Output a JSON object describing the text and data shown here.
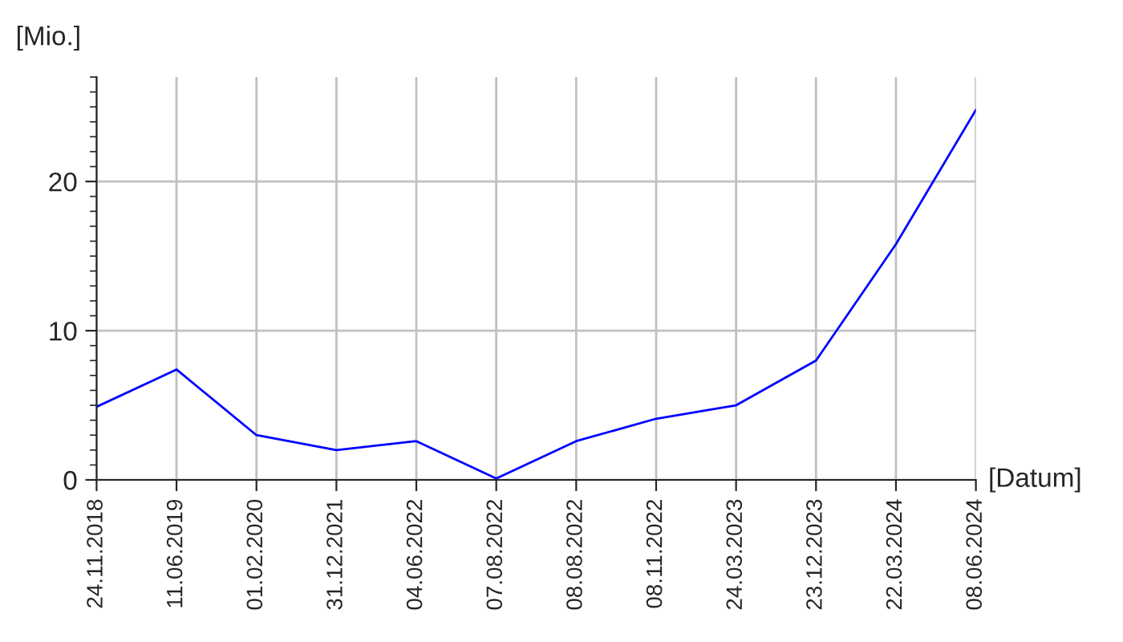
{
  "chart_data": {
    "type": "line",
    "ylabel": "[Mio.]",
    "xlabel": "[Datum]",
    "categories": [
      "24.11.2018",
      "11.06.2019",
      "01.02.2020",
      "31.12.2021",
      "04.06.2022",
      "07.08.2022",
      "08.08.2022",
      "08.11.2022",
      "24.03.2023",
      "23.12.2023",
      "22.03.2024",
      "08.06.2024"
    ],
    "series": [
      {
        "color": "#0000ff",
        "values": [
          4.9,
          7.4,
          3.0,
          2.0,
          2.6,
          0.1,
          2.6,
          4.1,
          5.0,
          8.0,
          15.8,
          24.8
        ]
      }
    ],
    "ylim": [
      0,
      27
    ],
    "yticks": [
      0,
      10,
      20
    ],
    "grid": true,
    "marker": "none",
    "line_style": "solid"
  }
}
